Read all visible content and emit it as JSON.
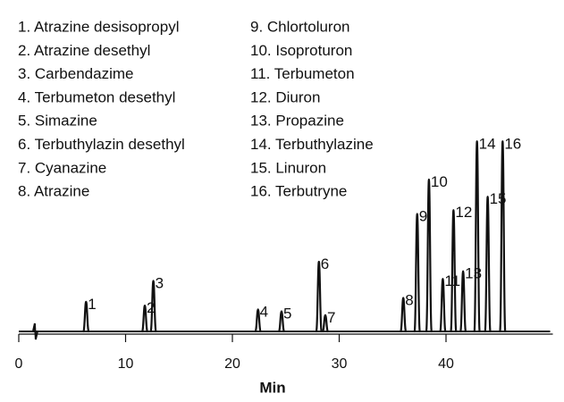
{
  "chart_data": {
    "type": "chromatogram",
    "compounds": [
      "1. Atrazine desisopropyl",
      "2. Atrazine desethyl",
      "3. Carbendazime",
      "4. Terbumeton desethyl",
      "5. Simazine",
      "6. Terbuthylazin desethyl",
      "7. Cyanazine",
      "8. Atrazine",
      "9. Chlortoluron",
      "10. Isoproturon",
      "11. Terbumeton",
      "12. Diuron",
      "13. Propazine",
      "14. Terbuthylazine",
      "15. Linuron",
      "16. Terbutryne"
    ],
    "peak_labels": [
      "1",
      "2",
      "3",
      "4",
      "5",
      "6",
      "7",
      "8",
      "9",
      "10",
      "11",
      "12",
      "13",
      "14",
      "15",
      "16"
    ],
    "x": [
      6.3,
      11.8,
      12.6,
      22.4,
      24.6,
      28.1,
      28.7,
      36.0,
      37.3,
      38.4,
      39.7,
      40.7,
      41.6,
      42.9,
      43.9,
      45.3
    ],
    "values": [
      16,
      14,
      27,
      12,
      11,
      37,
      9,
      18,
      62,
      80,
      28,
      64,
      32,
      100,
      71,
      100
    ],
    "color": "#111111",
    "xlabel": "Min",
    "xlim": [
      0,
      50
    ],
    "xticks": [
      0,
      10,
      20,
      30,
      40
    ],
    "ylim": [
      0,
      160
    ]
  }
}
